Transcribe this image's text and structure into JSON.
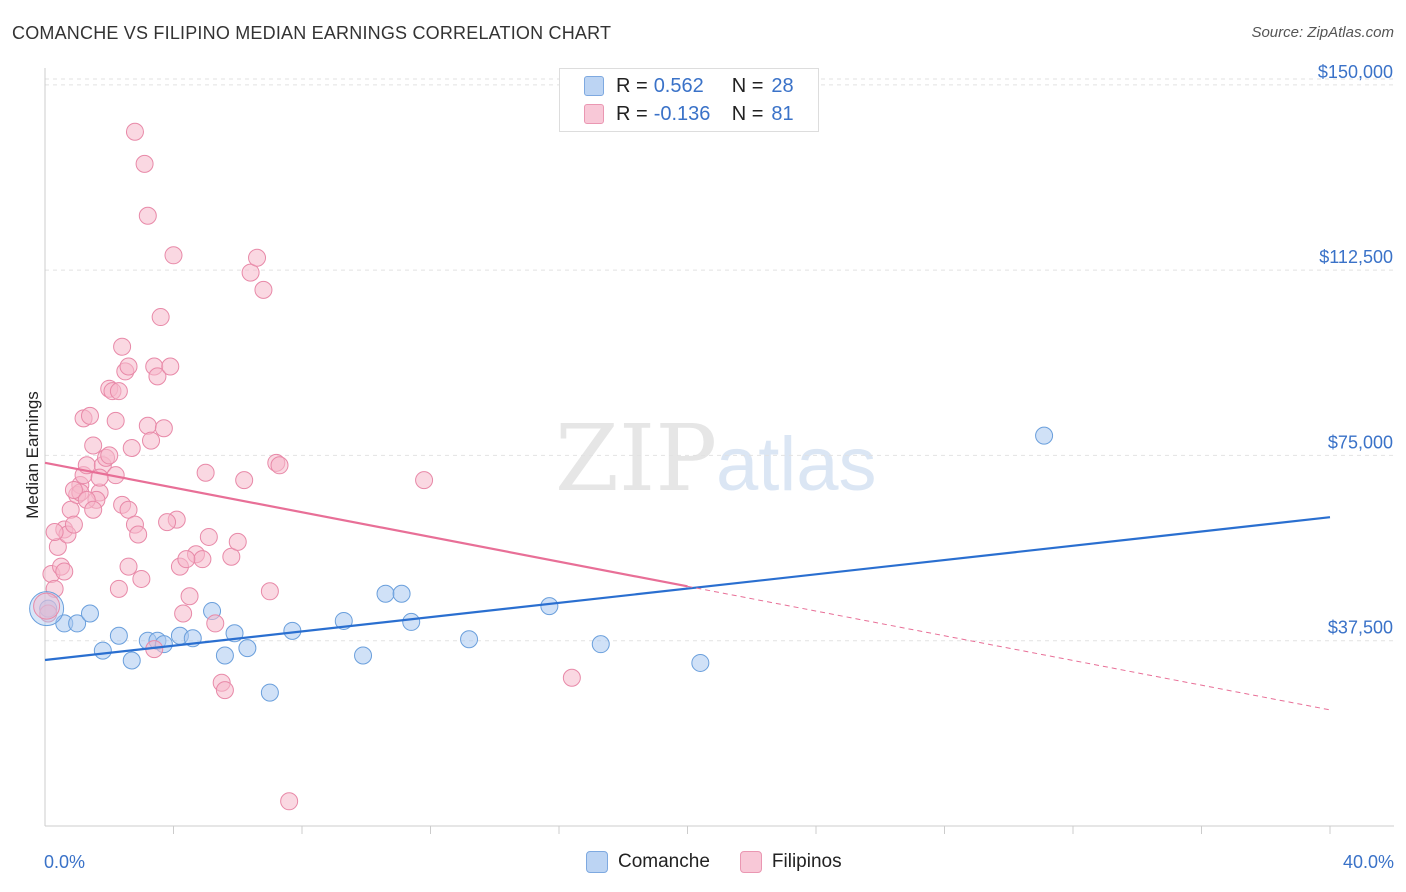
{
  "title": "COMANCHE VS FILIPINO MEDIAN EARNINGS CORRELATION CHART",
  "source": "Source: ZipAtlas.com",
  "watermark": {
    "zip": "ZIP",
    "atlas": "atlas"
  },
  "legend": {
    "rows": [
      {
        "r_label": "R =",
        "r_value": "0.562",
        "n_label": "N =",
        "n_value": "28",
        "color": "#a9c8f0"
      },
      {
        "r_label": "R =",
        "r_value": "-0.136",
        "n_label": "N =",
        "n_value": "81",
        "color": "#f5b8cb"
      }
    ]
  },
  "bottom_legend": {
    "comanche": "Comanche",
    "filipinos": "Filipinos"
  },
  "x_axis": {
    "min_label": "0.0%",
    "max_label": "40.0%"
  },
  "chart_data": {
    "type": "scatter",
    "title": "COMANCHE VS FILIPINO MEDIAN EARNINGS CORRELATION CHART",
    "xlabel": "",
    "ylabel": "Median Earnings",
    "xlim": [
      0,
      40
    ],
    "ylim": [
      0,
      153000
    ],
    "y_ticks": [
      37500,
      75000,
      112500,
      150000
    ],
    "y_tick_labels": [
      "$37,500",
      "$75,000",
      "$112,500",
      "$150,000"
    ],
    "x_tick_labels": [
      "0.0%",
      "40.0%"
    ],
    "grid": true,
    "series": [
      {
        "name": "Comanche",
        "color": "#a9c8f0",
        "stroke": "#6a9fdc",
        "trend_color": "#2a6fd0",
        "trend": {
          "x1": 0,
          "y1": 33600,
          "x2": 40,
          "y2": 62500,
          "dashed_from": null
        },
        "points": [
          [
            0.1,
            44000
          ],
          [
            0.6,
            41000
          ],
          [
            1.0,
            41000
          ],
          [
            1.4,
            43000
          ],
          [
            1.8,
            35500
          ],
          [
            2.3,
            38500
          ],
          [
            2.7,
            33500
          ],
          [
            3.2,
            37500
          ],
          [
            3.5,
            37500
          ],
          [
            3.7,
            36800
          ],
          [
            4.2,
            38500
          ],
          [
            4.6,
            38000
          ],
          [
            5.2,
            43500
          ],
          [
            5.6,
            34500
          ],
          [
            5.9,
            39000
          ],
          [
            6.3,
            36000
          ],
          [
            7.0,
            27000
          ],
          [
            7.7,
            39500
          ],
          [
            9.3,
            41500
          ],
          [
            9.9,
            34500
          ],
          [
            10.6,
            47000
          ],
          [
            11.1,
            47000
          ],
          [
            11.4,
            41300
          ],
          [
            13.2,
            37800
          ],
          [
            15.7,
            44500
          ],
          [
            17.3,
            36800
          ],
          [
            20.4,
            33000
          ],
          [
            31.1,
            79000
          ]
        ]
      },
      {
        "name": "Filipinos",
        "color": "#f5b8cb",
        "stroke": "#e889a8",
        "trend_color": "#e86f97",
        "trend": {
          "x1": 0,
          "y1": 73500,
          "x2": 40,
          "y2": 23500,
          "dashed_from": 20
        },
        "points": [
          [
            0.1,
            43000
          ],
          [
            0.2,
            51000
          ],
          [
            0.3,
            48000
          ],
          [
            0.4,
            56500
          ],
          [
            0.5,
            52500
          ],
          [
            0.6,
            60000
          ],
          [
            0.7,
            59000
          ],
          [
            0.8,
            64000
          ],
          [
            0.9,
            61000
          ],
          [
            1.0,
            67000
          ],
          [
            1.1,
            69000
          ],
          [
            1.2,
            71000
          ],
          [
            1.3,
            73000
          ],
          [
            1.1,
            67500
          ],
          [
            1.5,
            77000
          ],
          [
            1.2,
            82500
          ],
          [
            1.4,
            83000
          ],
          [
            1.7,
            67500
          ],
          [
            1.8,
            73000
          ],
          [
            1.9,
            74500
          ],
          [
            1.6,
            66000
          ],
          [
            2.0,
            88500
          ],
          [
            2.1,
            88000
          ],
          [
            2.2,
            82000
          ],
          [
            2.3,
            88000
          ],
          [
            2.4,
            97000
          ],
          [
            2.5,
            92000
          ],
          [
            2.6,
            93000
          ],
          [
            2.2,
            71000
          ],
          [
            2.7,
            76500
          ],
          [
            2.4,
            65000
          ],
          [
            2.6,
            64000
          ],
          [
            2.8,
            61000
          ],
          [
            2.9,
            59000
          ],
          [
            2.6,
            52500
          ],
          [
            3.0,
            50000
          ],
          [
            3.2,
            81000
          ],
          [
            3.3,
            78000
          ],
          [
            3.4,
            93000
          ],
          [
            3.5,
            91000
          ],
          [
            3.6,
            103000
          ],
          [
            3.7,
            80500
          ],
          [
            3.9,
            93000
          ],
          [
            4.1,
            62000
          ],
          [
            4.2,
            52500
          ],
          [
            4.3,
            43000
          ],
          [
            4.5,
            46500
          ],
          [
            4.7,
            55000
          ],
          [
            4.9,
            54000
          ],
          [
            5.0,
            71500
          ],
          [
            5.1,
            58500
          ],
          [
            5.3,
            41000
          ],
          [
            5.5,
            29000
          ],
          [
            5.6,
            27500
          ],
          [
            5.8,
            54500
          ],
          [
            6.0,
            57500
          ],
          [
            6.2,
            70000
          ],
          [
            6.4,
            112000
          ],
          [
            6.6,
            115000
          ],
          [
            6.8,
            108500
          ],
          [
            7.0,
            47500
          ],
          [
            7.2,
            73500
          ],
          [
            7.3,
            73000
          ],
          [
            3.1,
            134000
          ],
          [
            2.8,
            140500
          ],
          [
            3.2,
            123500
          ],
          [
            4.0,
            115500
          ],
          [
            7.6,
            5000
          ],
          [
            11.8,
            70000
          ],
          [
            16.4,
            30000
          ],
          [
            3.4,
            35800
          ],
          [
            0.3,
            59500
          ],
          [
            0.9,
            68000
          ],
          [
            1.3,
            66000
          ],
          [
            1.7,
            70500
          ],
          [
            1.5,
            64000
          ],
          [
            2.0,
            75000
          ],
          [
            0.6,
            51500
          ],
          [
            3.8,
            61500
          ],
          [
            2.3,
            48000
          ],
          [
            4.4,
            54000
          ]
        ]
      }
    ]
  }
}
